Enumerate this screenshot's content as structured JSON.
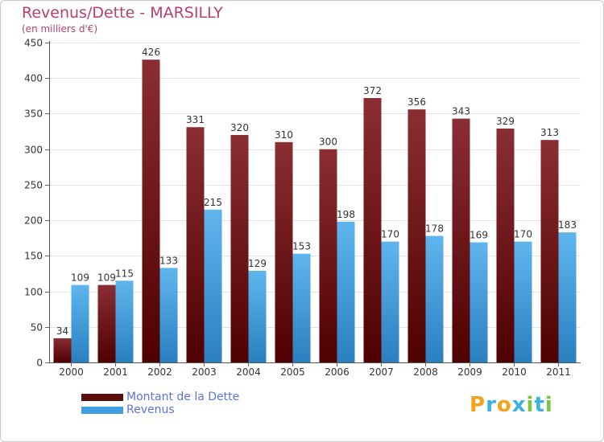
{
  "title": "Revenus/Dette - MARSILLY",
  "subtitle": "(en milliers d'€)",
  "chart_data": {
    "type": "bar",
    "categories": [
      "2000",
      "2001",
      "2002",
      "2003",
      "2004",
      "2005",
      "2006",
      "2007",
      "2008",
      "2009",
      "2010",
      "2011"
    ],
    "series": [
      {
        "name": "Montant de la Dette",
        "values": [
          34,
          109,
          426,
          331,
          320,
          310,
          300,
          372,
          356,
          343,
          329,
          313
        ]
      },
      {
        "name": "Revenus",
        "values": [
          109,
          115,
          133,
          215,
          129,
          153,
          198,
          170,
          178,
          169,
          170,
          183
        ]
      }
    ],
    "ylim": [
      0,
      450
    ],
    "yticks": [
      0,
      50,
      100,
      150,
      200,
      250,
      300,
      350,
      400,
      450
    ],
    "grid": true,
    "legend": "bottom-left"
  },
  "colors": {
    "debt_top": "#8a2e34",
    "debt_bottom": "#4f0000",
    "revenue_top": "#5fb6ee",
    "revenue_bottom": "#2a7fc0",
    "title": "#b8406e",
    "legend_text": "#5a74d8"
  },
  "legend": [
    {
      "label": "Montant de la Dette",
      "color": "#5a0f0f"
    },
    {
      "label": "Revenus",
      "color": "#3f9fe3"
    }
  ],
  "logo": {
    "letters": [
      "P",
      "r",
      "o",
      "x",
      "i",
      "t",
      "i"
    ],
    "colors": [
      "#f2a21b",
      "#3bb1e6",
      "#f2a21b",
      "#3bb1e6",
      "#7ec242",
      "#3bb1e6",
      "#7ec242"
    ]
  }
}
